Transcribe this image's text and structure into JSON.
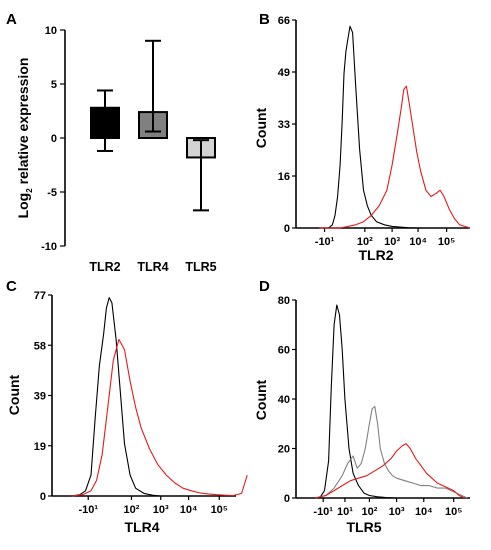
{
  "chart_data": [
    {
      "panel": "A",
      "type": "bar",
      "ylabel_main": "Log",
      "ylabel_sub": "2",
      "ylabel_rest": " relative expression",
      "ylim": [
        -10,
        10
      ],
      "yticks": [
        10,
        5,
        0,
        -5,
        -10
      ],
      "categories": [
        "TLR2",
        "TLR4",
        "TLR5"
      ],
      "values": [
        2.8,
        2.4,
        -1.8
      ],
      "error_low": [
        -1.2,
        0.6,
        -6.7
      ],
      "error_high": [
        4.4,
        9.0,
        -0.2
      ],
      "bar_colors": [
        "#000000",
        "#808080",
        "#d3d3d3"
      ]
    },
    {
      "panel": "B",
      "type": "line",
      "xlabel": "TLR2",
      "ylabel": "Count",
      "ylim": [
        0,
        66
      ],
      "yticks": [
        "0",
        "16",
        "33",
        "49",
        "66"
      ],
      "xticks": [
        "-10¹",
        "10²",
        "10³",
        "10⁴",
        "10⁵"
      ],
      "series": [
        {
          "color": "#000000",
          "x": [
            -0.8,
            -0.6,
            -0.45,
            -0.3,
            -0.2,
            -0.1,
            0.0,
            0.08,
            0.15,
            0.22,
            0.3,
            0.38,
            0.48,
            0.6,
            0.75,
            0.9,
            1.05,
            1.2,
            1.4,
            1.7,
            2.0,
            2.3,
            2.6,
            3.0,
            3.4
          ],
          "y": [
            0,
            0,
            0,
            1,
            4,
            10,
            20,
            34,
            49,
            56,
            60,
            64,
            62,
            45,
            25,
            12,
            7,
            4,
            2,
            1,
            0.5,
            0.3,
            0.1,
            0,
            0
          ]
        },
        {
          "color": "#e41a1c",
          "x": [
            -0.8,
            -0.3,
            0.0,
            0.3,
            0.6,
            0.9,
            1.2,
            1.5,
            1.8,
            2.0,
            2.2,
            2.35,
            2.45,
            2.55,
            2.65,
            2.8,
            2.95,
            3.1,
            3.3,
            3.5,
            3.7,
            3.85,
            4.0,
            4.2,
            4.4,
            4.6,
            4.8,
            5.0
          ],
          "y": [
            0,
            0,
            0,
            0.5,
            1,
            2,
            4,
            7,
            12,
            20,
            30,
            38,
            44,
            45,
            40,
            32,
            24,
            18,
            12,
            10,
            11,
            12,
            10,
            6,
            3,
            1,
            0.5,
            0
          ]
        }
      ]
    },
    {
      "panel": "C",
      "type": "line",
      "xlabel": "TLR4",
      "ylabel": "Count",
      "ylim": [
        0,
        77
      ],
      "yticks": [
        "0",
        "19",
        "39",
        "58",
        "77"
      ],
      "xticks": [
        "-10¹",
        "10²",
        "10³",
        "10⁴",
        "10⁵"
      ],
      "series": [
        {
          "color": "#000000",
          "x": [
            -1.2,
            -0.9,
            -0.7,
            -0.5,
            -0.35,
            -0.2,
            -0.05,
            0.05,
            0.15,
            0.25,
            0.4,
            0.55,
            0.7,
            0.9,
            1.1,
            1.4,
            1.7,
            2.0
          ],
          "y": [
            0,
            0.5,
            2,
            8,
            30,
            50,
            62,
            72,
            76,
            74,
            60,
            40,
            20,
            8,
            3,
            1,
            0.3,
            0
          ]
        },
        {
          "color": "#e41a1c",
          "x": [
            -1.2,
            -0.8,
            -0.5,
            -0.3,
            -0.1,
            0.1,
            0.3,
            0.5,
            0.7,
            0.9,
            1.1,
            1.3,
            1.6,
            1.9,
            2.2,
            2.5,
            2.8,
            3.1,
            3.4,
            3.7,
            4.0,
            4.3,
            4.6,
            4.9,
            5.1
          ],
          "y": [
            0,
            0.5,
            2,
            6,
            16,
            34,
            52,
            60,
            56,
            44,
            34,
            26,
            18,
            12,
            8,
            5,
            3,
            2,
            1.2,
            0.8,
            0.5,
            0.3,
            0.2,
            1,
            8
          ]
        }
      ]
    },
    {
      "panel": "D",
      "type": "line",
      "xlabel": "TLR5",
      "ylabel": "Count",
      "ylim": [
        0,
        80
      ],
      "yticks": [
        "0",
        "20",
        "40",
        "60",
        "80"
      ],
      "xticks": [
        "-10¹",
        "10¹",
        "10²",
        "10³",
        "10⁴",
        "10⁵"
      ],
      "series": [
        {
          "color": "#000000",
          "x": [
            -1.0,
            -0.8,
            -0.65,
            -0.5,
            -0.4,
            -0.3,
            -0.2,
            -0.1,
            0.0,
            0.1,
            0.25,
            0.4,
            0.6,
            0.8,
            1.0,
            1.3,
            1.6,
            2.0
          ],
          "y": [
            0,
            0.5,
            3,
            15,
            45,
            70,
            78,
            74,
            60,
            40,
            20,
            10,
            5,
            2,
            1,
            0.5,
            0.2,
            0
          ]
        },
        {
          "color": "#808080",
          "x": [
            -1.0,
            -0.6,
            -0.3,
            0.0,
            0.2,
            0.4,
            0.55,
            0.7,
            0.85,
            1.0,
            1.1,
            1.2,
            1.3,
            1.4,
            1.55,
            1.7,
            1.85,
            2.0,
            2.3,
            2.6,
            2.9,
            3.2,
            3.5,
            3.8,
            4.0,
            4.2,
            4.4,
            4.6
          ],
          "y": [
            0,
            1,
            4,
            9,
            14,
            17,
            12,
            14,
            20,
            30,
            36,
            37,
            30,
            20,
            14,
            11,
            9,
            8,
            7,
            6,
            5,
            5,
            4,
            4,
            3,
            2,
            1,
            0
          ]
        },
        {
          "color": "#e41a1c",
          "x": [
            -1.0,
            -0.6,
            -0.3,
            0.0,
            0.3,
            0.6,
            0.9,
            1.2,
            1.5,
            1.8,
            2.0,
            2.2,
            2.35,
            2.5,
            2.7,
            2.9,
            3.1,
            3.3,
            3.5,
            3.7,
            3.9,
            4.1,
            4.3,
            4.5
          ],
          "y": [
            0,
            1,
            3,
            5,
            7,
            8,
            9,
            11,
            13,
            16,
            19,
            21,
            22,
            20,
            16,
            13,
            10,
            8,
            6,
            5,
            4,
            3,
            1,
            0
          ]
        }
      ]
    }
  ],
  "panel_letters": [
    "A",
    "B",
    "C",
    "D"
  ]
}
